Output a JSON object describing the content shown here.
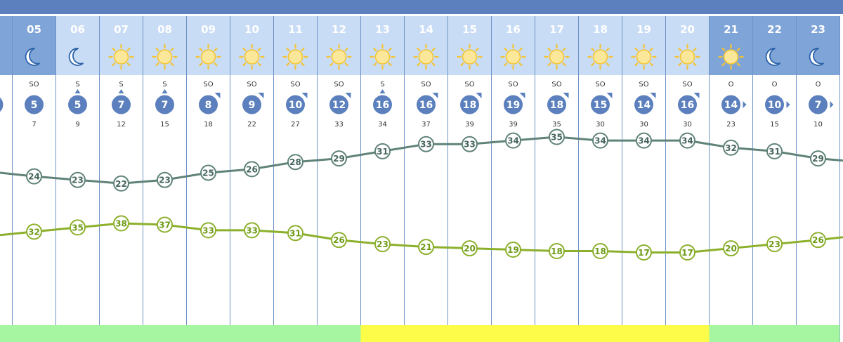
{
  "colors": {
    "header_bar": "#5b80bd",
    "day_cell": "#c9dcf5",
    "night_cell": "#7fa4d8",
    "hour_text": "#ffffff",
    "divider": "#6f93c6",
    "wind_circle": "#5b80bd",
    "temperature_line": "#5f8279",
    "humidity_line": "#8cb02c",
    "band_green": "#a6f5a0",
    "band_yellow": "#fdfc48"
  },
  "chart_data": {
    "type": "line",
    "hours": [
      "05",
      "06",
      "07",
      "08",
      "09",
      "10",
      "11",
      "12",
      "13",
      "14",
      "15",
      "16",
      "17",
      "18",
      "19",
      "20",
      "21",
      "22",
      "23"
    ],
    "sky_icons": [
      "moon-icon",
      "moon-icon",
      "sun-icon",
      "sun-icon",
      "sun-icon",
      "sun-icon",
      "sun-icon",
      "sun-icon",
      "sun-icon",
      "sun-icon",
      "sun-icon",
      "sun-icon",
      "sun-icon",
      "sun-icon",
      "sun-icon",
      "sun-icon",
      "sun-icon",
      "moon-icon",
      "moon-icon"
    ],
    "night_hours": [
      "05",
      "21",
      "22",
      "23"
    ],
    "wind_direction": [
      "SO",
      "S",
      "S",
      "S",
      "SO",
      "SO",
      "SO",
      "SO",
      "S",
      "SO",
      "SO",
      "SO",
      "SO",
      "SO",
      "SO",
      "SO",
      "O",
      "O",
      "O"
    ],
    "wind_arrow": [
      "",
      "up",
      "up",
      "up",
      "corner",
      "corner",
      "corner",
      "corner",
      "up",
      "corner",
      "corner",
      "corner",
      "corner",
      "corner",
      "corner",
      "corner",
      "right",
      "right",
      "right"
    ],
    "wind_speed": [
      5,
      5,
      7,
      7,
      8,
      9,
      10,
      12,
      16,
      16,
      18,
      19,
      18,
      15,
      14,
      16,
      14,
      10,
      7
    ],
    "wind_gust": [
      7,
      9,
      12,
      15,
      18,
      22,
      27,
      33,
      34,
      37,
      39,
      39,
      35,
      30,
      30,
      30,
      23,
      15,
      10
    ],
    "series": [
      {
        "values": [
          24,
          23,
          22,
          23,
          25,
          26,
          28,
          29,
          31,
          33,
          33,
          34,
          35,
          34,
          34,
          34,
          32,
          31,
          29
        ]
      },
      {
        "values": [
          32,
          35,
          38,
          37,
          33,
          33,
          31,
          26,
          23,
          21,
          20,
          19,
          18,
          18,
          17,
          17,
          20,
          23,
          26
        ]
      }
    ],
    "band": [
      "green",
      "green",
      "green",
      "green",
      "green",
      "green",
      "green",
      "green",
      "yellow",
      "yellow",
      "yellow",
      "yellow",
      "yellow",
      "yellow",
      "yellow",
      "yellow",
      "green",
      "green",
      "green"
    ],
    "grid": true
  }
}
